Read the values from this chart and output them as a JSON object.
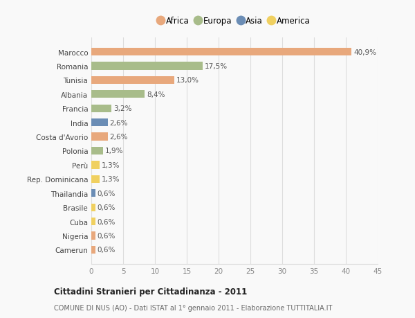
{
  "countries": [
    "Marocco",
    "Romania",
    "Tunisia",
    "Albania",
    "Francia",
    "India",
    "Costa d'Avorio",
    "Polonia",
    "Perù",
    "Rep. Dominicana",
    "Thailandia",
    "Brasile",
    "Cuba",
    "Nigeria",
    "Camerun"
  ],
  "values": [
    40.9,
    17.5,
    13.0,
    8.4,
    3.2,
    2.6,
    2.6,
    1.9,
    1.3,
    1.3,
    0.6,
    0.6,
    0.6,
    0.6,
    0.6
  ],
  "labels": [
    "40,9%",
    "17,5%",
    "13,0%",
    "8,4%",
    "3,2%",
    "2,6%",
    "2,6%",
    "1,9%",
    "1,3%",
    "1,3%",
    "0,6%",
    "0,6%",
    "0,6%",
    "0,6%",
    "0,6%"
  ],
  "continents": [
    "Africa",
    "Europa",
    "Africa",
    "Europa",
    "Europa",
    "Asia",
    "Africa",
    "Europa",
    "America",
    "America",
    "Asia",
    "America",
    "America",
    "Africa",
    "Africa"
  ],
  "colors": {
    "Africa": "#E8A87C",
    "Europa": "#A8BC8A",
    "Asia": "#6B8DB5",
    "America": "#F0D060"
  },
  "legend_order": [
    "Africa",
    "Europa",
    "Asia",
    "America"
  ],
  "legend_colors": {
    "Africa": "#E8A87C",
    "Europa": "#A8BC8A",
    "Asia": "#6B8DB5",
    "America": "#F0D060"
  },
  "title": "Cittadini Stranieri per Cittadinanza - 2011",
  "subtitle": "COMUNE DI NUS (AO) - Dati ISTAT al 1° gennaio 2011 - Elaborazione TUTTITALIA.IT",
  "xlim": [
    0,
    45
  ],
  "xticks": [
    0,
    5,
    10,
    15,
    20,
    25,
    30,
    35,
    40,
    45
  ],
  "background_color": "#f9f9f9",
  "grid_color": "#dddddd",
  "bar_height": 0.55,
  "label_fontsize": 7.5,
  "ytick_fontsize": 7.5,
  "xtick_fontsize": 7.5
}
